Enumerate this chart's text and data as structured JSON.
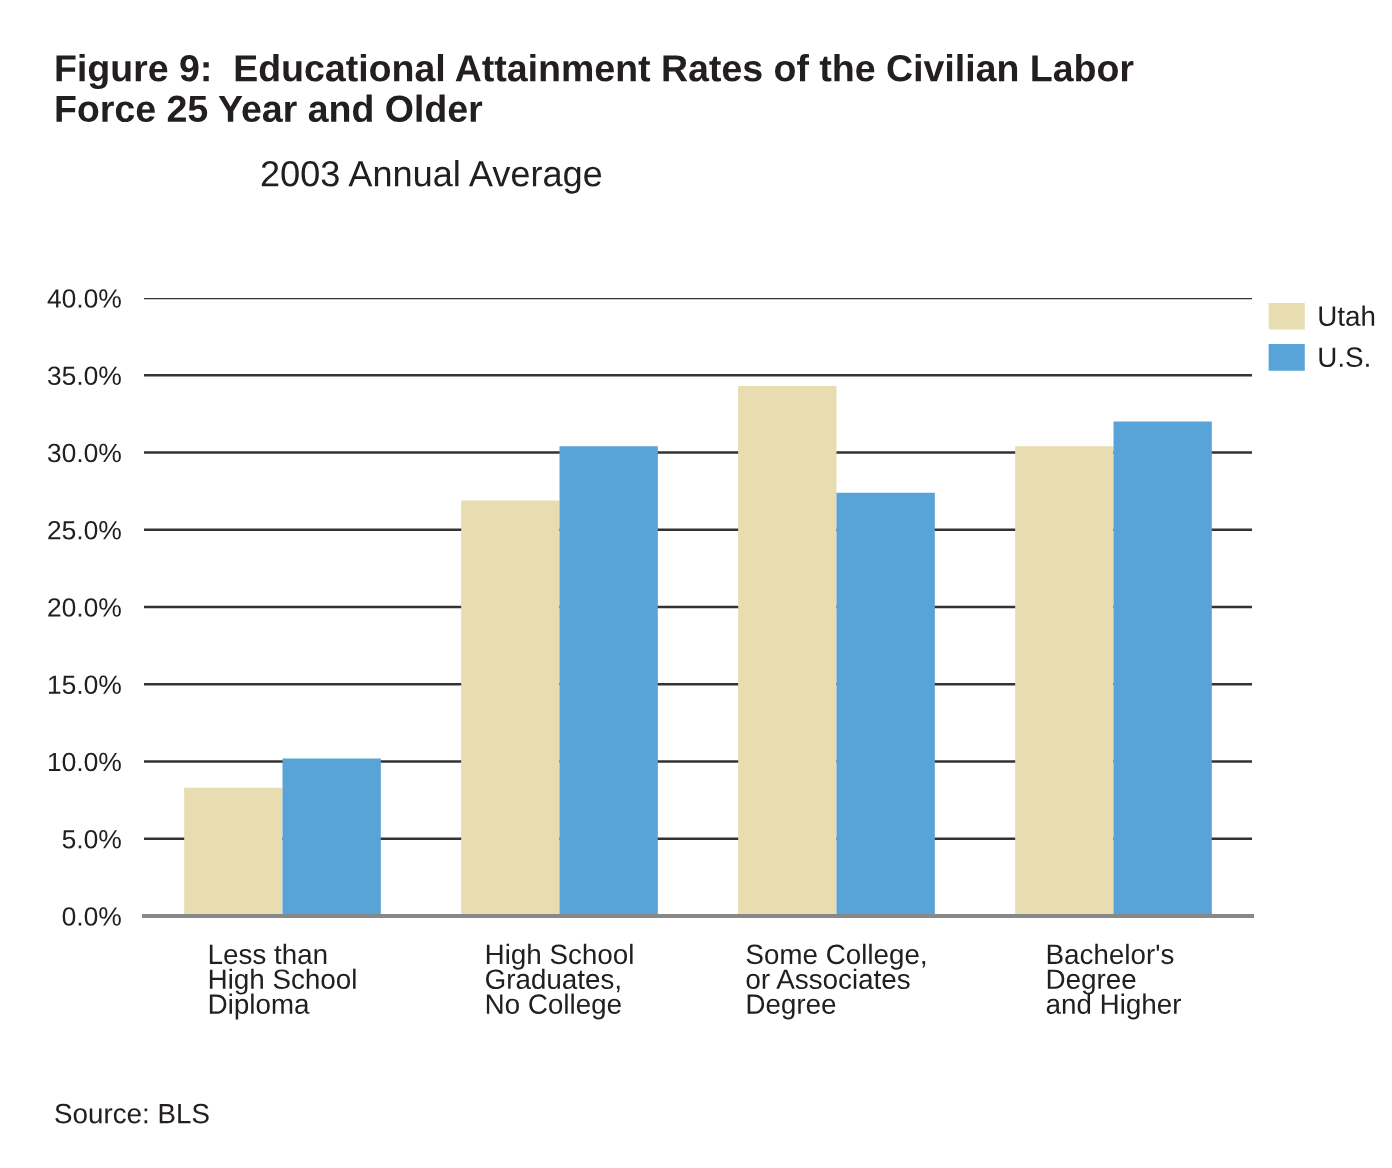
{
  "chart_data": {
    "type": "bar",
    "title": "Figure 9:  Educational Attainment Rates of the Civilian Labor\nForce 25 Year and Older",
    "subtitle": "2003 Annual Average",
    "categories": [
      "Less than\nHigh School\nDiploma",
      "High School\nGraduates,\nNo College",
      "Some College,\nor Associates\nDegree",
      "Bachelor's\nDegree\nand Higher"
    ],
    "series": [
      {
        "name": "Utah",
        "color": "#e8ddb0",
        "values": [
          8.3,
          26.9,
          34.3,
          30.4
        ]
      },
      {
        "name": "U.S.",
        "color": "#58a3d7",
        "values": [
          10.2,
          30.4,
          27.4,
          32.0
        ]
      }
    ],
    "ylim": [
      0,
      40
    ],
    "yticks": [
      {
        "value": 0,
        "label": "0.0%"
      },
      {
        "value": 5,
        "label": "5.0%"
      },
      {
        "value": 10,
        "label": "10.0%"
      },
      {
        "value": 15,
        "label": "15.0%"
      },
      {
        "value": 20,
        "label": "20.0%"
      },
      {
        "value": 25,
        "label": "25.0%"
      },
      {
        "value": 30,
        "label": "30.0%"
      },
      {
        "value": 35,
        "label": "35.0%"
      },
      {
        "value": 40,
        "label": "40.0%"
      }
    ],
    "grid": "y",
    "legend": "top right",
    "annotations": [
      "Source: BLS"
    ]
  }
}
